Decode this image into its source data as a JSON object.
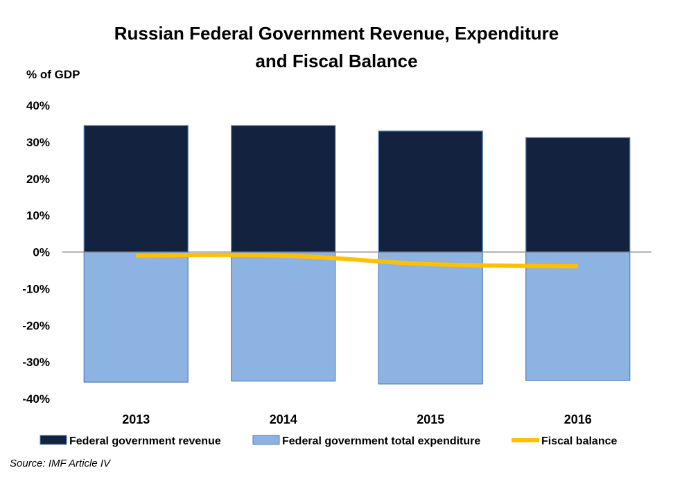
{
  "title_line1": "Russian Federal Government Revenue, Expenditure",
  "title_line2": "and Fiscal Balance",
  "source": "Source: IMF Article IV",
  "colors": {
    "revenue": "#13233f",
    "expenditure": "#8db3e2",
    "expenditure_border": "#4f81bd",
    "fiscal_balance": "#ffc000",
    "axis": "#808080"
  },
  "chart_data": {
    "type": "bar",
    "ylabel": "% of GDP",
    "categories": [
      "2013",
      "2014",
      "2015",
      "2016"
    ],
    "ylim": [
      -40,
      40
    ],
    "yticks": [
      "40%",
      "30%",
      "20%",
      "10%",
      "0%",
      "-10%",
      "-20%",
      "-30%",
      "-40%"
    ],
    "ytick_values": [
      40,
      30,
      20,
      10,
      0,
      -10,
      -20,
      -30,
      -40
    ],
    "series": [
      {
        "name": "Federal government revenue",
        "kind": "bar",
        "values": [
          34.5,
          34.5,
          33.0,
          31.2
        ]
      },
      {
        "name": "Federal government total expenditure",
        "kind": "bar",
        "values": [
          -35.5,
          -35.2,
          -36.0,
          -35.0
        ]
      },
      {
        "name": "Fiscal balance",
        "kind": "line",
        "values": [
          -1.0,
          -1.0,
          -3.3,
          -3.9
        ]
      }
    ],
    "legend_position": "bottom",
    "grid": false
  }
}
